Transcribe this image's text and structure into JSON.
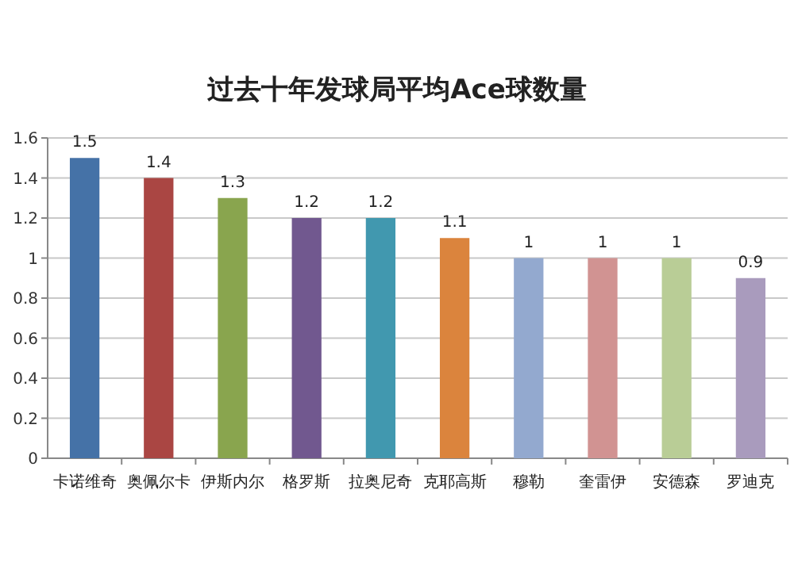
{
  "chart_data": {
    "type": "bar",
    "title": "过去十年发球局平均Ace球数量",
    "categories": [
      "卡诺维奇",
      "奥佩尔卡",
      "伊斯内尔",
      "格罗斯",
      "拉奥尼奇",
      "克耶高斯",
      "穆勒",
      "奎雷伊",
      "安德森",
      "罗迪克"
    ],
    "values": [
      1.5,
      1.4,
      1.3,
      1.2,
      1.2,
      1.1,
      1,
      1,
      1,
      0.9
    ],
    "colors": [
      "#4572a7",
      "#aa4643",
      "#89a54e",
      "#71588f",
      "#4198af",
      "#db843d",
      "#93a9cf",
      "#d19392",
      "#b9cd96",
      "#a99bbd"
    ],
    "ylim": [
      0,
      1.6
    ],
    "yticks": [
      0,
      0.2,
      0.4,
      0.6,
      0.8,
      1,
      1.2,
      1.4,
      1.6
    ],
    "grid": "y",
    "data_labels": true
  }
}
